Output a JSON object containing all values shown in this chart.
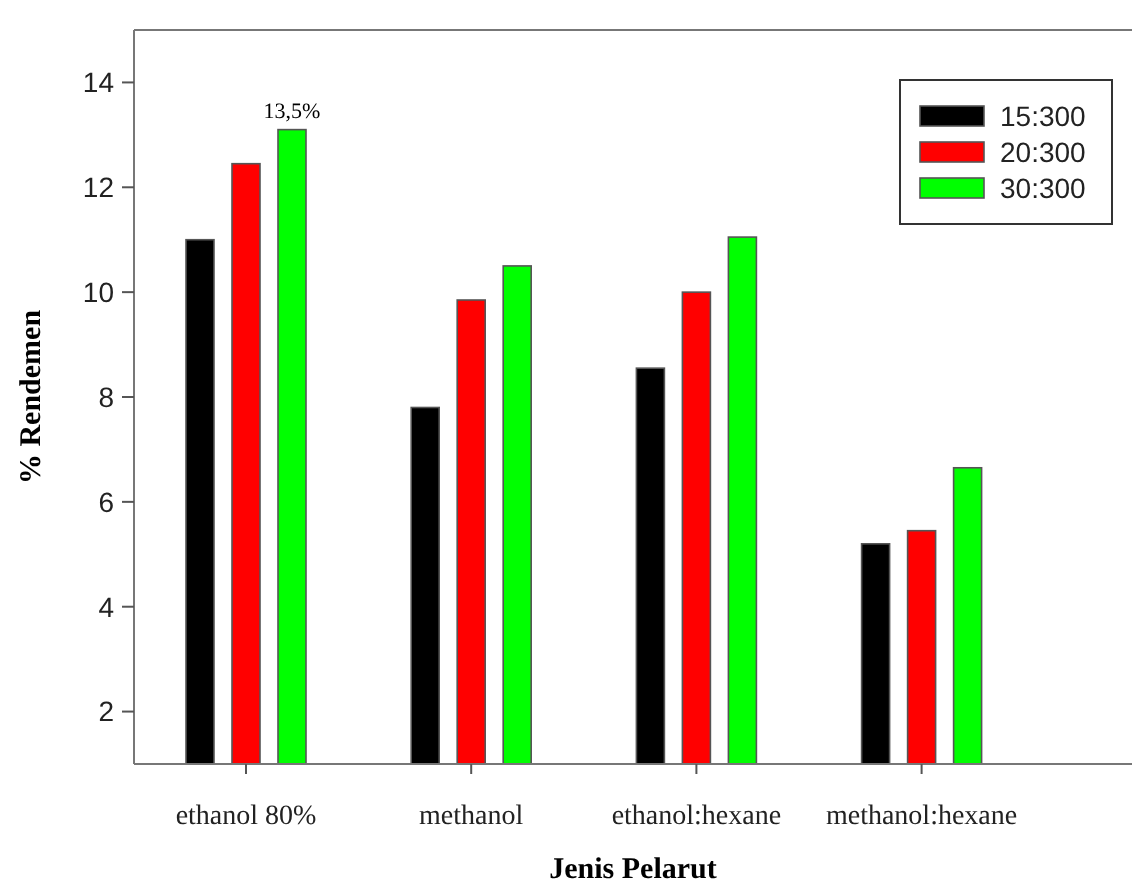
{
  "chart_data": {
    "type": "bar",
    "xlabel": "Jenis Pelarut",
    "ylabel": "% Rendemen",
    "categories": [
      "ethanol 80%",
      "methanol",
      "ethanol:hexane",
      "methanol:hexane"
    ],
    "series": [
      {
        "name": "15:300",
        "color": "#000000",
        "values": [
          11.0,
          7.8,
          8.55,
          5.2
        ]
      },
      {
        "name": "20:300",
        "color": "#ff0000",
        "values": [
          12.45,
          9.85,
          10.0,
          5.45
        ]
      },
      {
        "name": "30:300",
        "color": "#00ff00",
        "values": [
          13.1,
          10.5,
          11.05,
          6.65
        ]
      }
    ],
    "ylim": [
      1,
      15
    ],
    "yticks": [
      2,
      4,
      6,
      8,
      10,
      12,
      14
    ],
    "grid": false,
    "legend": "top right",
    "annotations": [
      "13,5%"
    ]
  }
}
